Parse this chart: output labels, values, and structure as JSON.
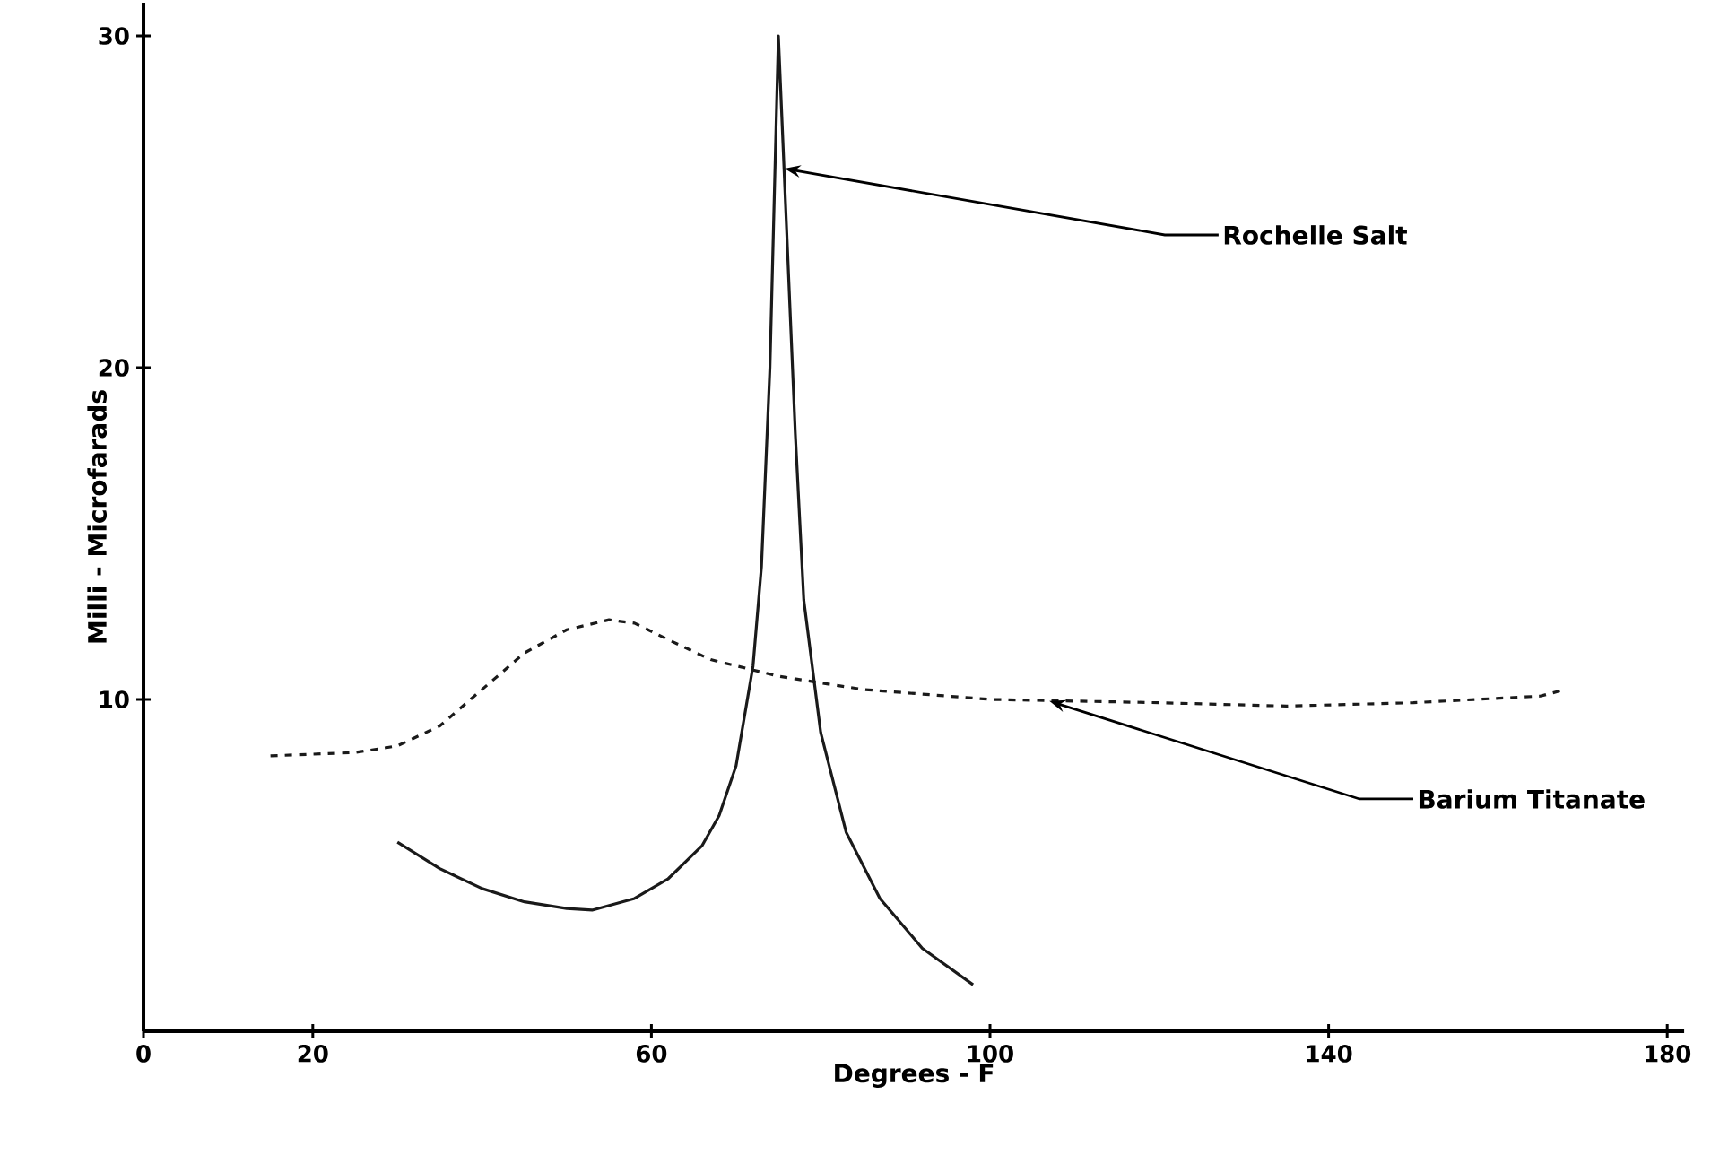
{
  "chart_data": {
    "type": "line",
    "xlabel": "Degrees - F",
    "ylabel": "Milli - Microfarads",
    "xlim": [
      0,
      182
    ],
    "ylim": [
      0,
      31
    ],
    "xticks": [
      0,
      20,
      60,
      100,
      140,
      180
    ],
    "yticks": [
      10,
      20,
      30
    ],
    "grid": false,
    "marker": "none",
    "series": [
      {
        "name": null,
        "color": "#1a1a1a",
        "line_style": "solid",
        "x": [
          30,
          35,
          40,
          45,
          50,
          53,
          58,
          62,
          66,
          68,
          70,
          72,
          73,
          74,
          75,
          76,
          77,
          78,
          80,
          83,
          87,
          92,
          98
        ],
        "values": [
          5.7,
          4.9,
          4.3,
          3.9,
          3.7,
          3.65,
          4.0,
          4.6,
          5.6,
          6.5,
          8.0,
          11,
          14,
          20,
          30,
          24,
          18,
          13,
          9,
          6,
          4,
          2.5,
          1.4
        ]
      },
      {
        "name": null,
        "color": "#1a1a1a",
        "line_style": "dashed",
        "x": [
          15,
          25,
          30,
          35,
          40,
          45,
          50,
          55,
          58,
          62,
          67,
          75,
          85,
          100,
          120,
          135,
          150,
          165,
          168
        ],
        "values": [
          8.3,
          8.4,
          8.6,
          9.2,
          10.3,
          11.4,
          12.1,
          12.4,
          12.3,
          11.8,
          11.2,
          10.7,
          10.3,
          10.0,
          9.9,
          9.8,
          9.9,
          10.1,
          10.3
        ]
      }
    ],
    "annotations": [
      {
        "text": "Rochelle Salt",
        "x": 75.7,
        "y": 26
      },
      {
        "text": "Barium Titanate",
        "x": 107,
        "y": 9.95
      }
    ]
  }
}
